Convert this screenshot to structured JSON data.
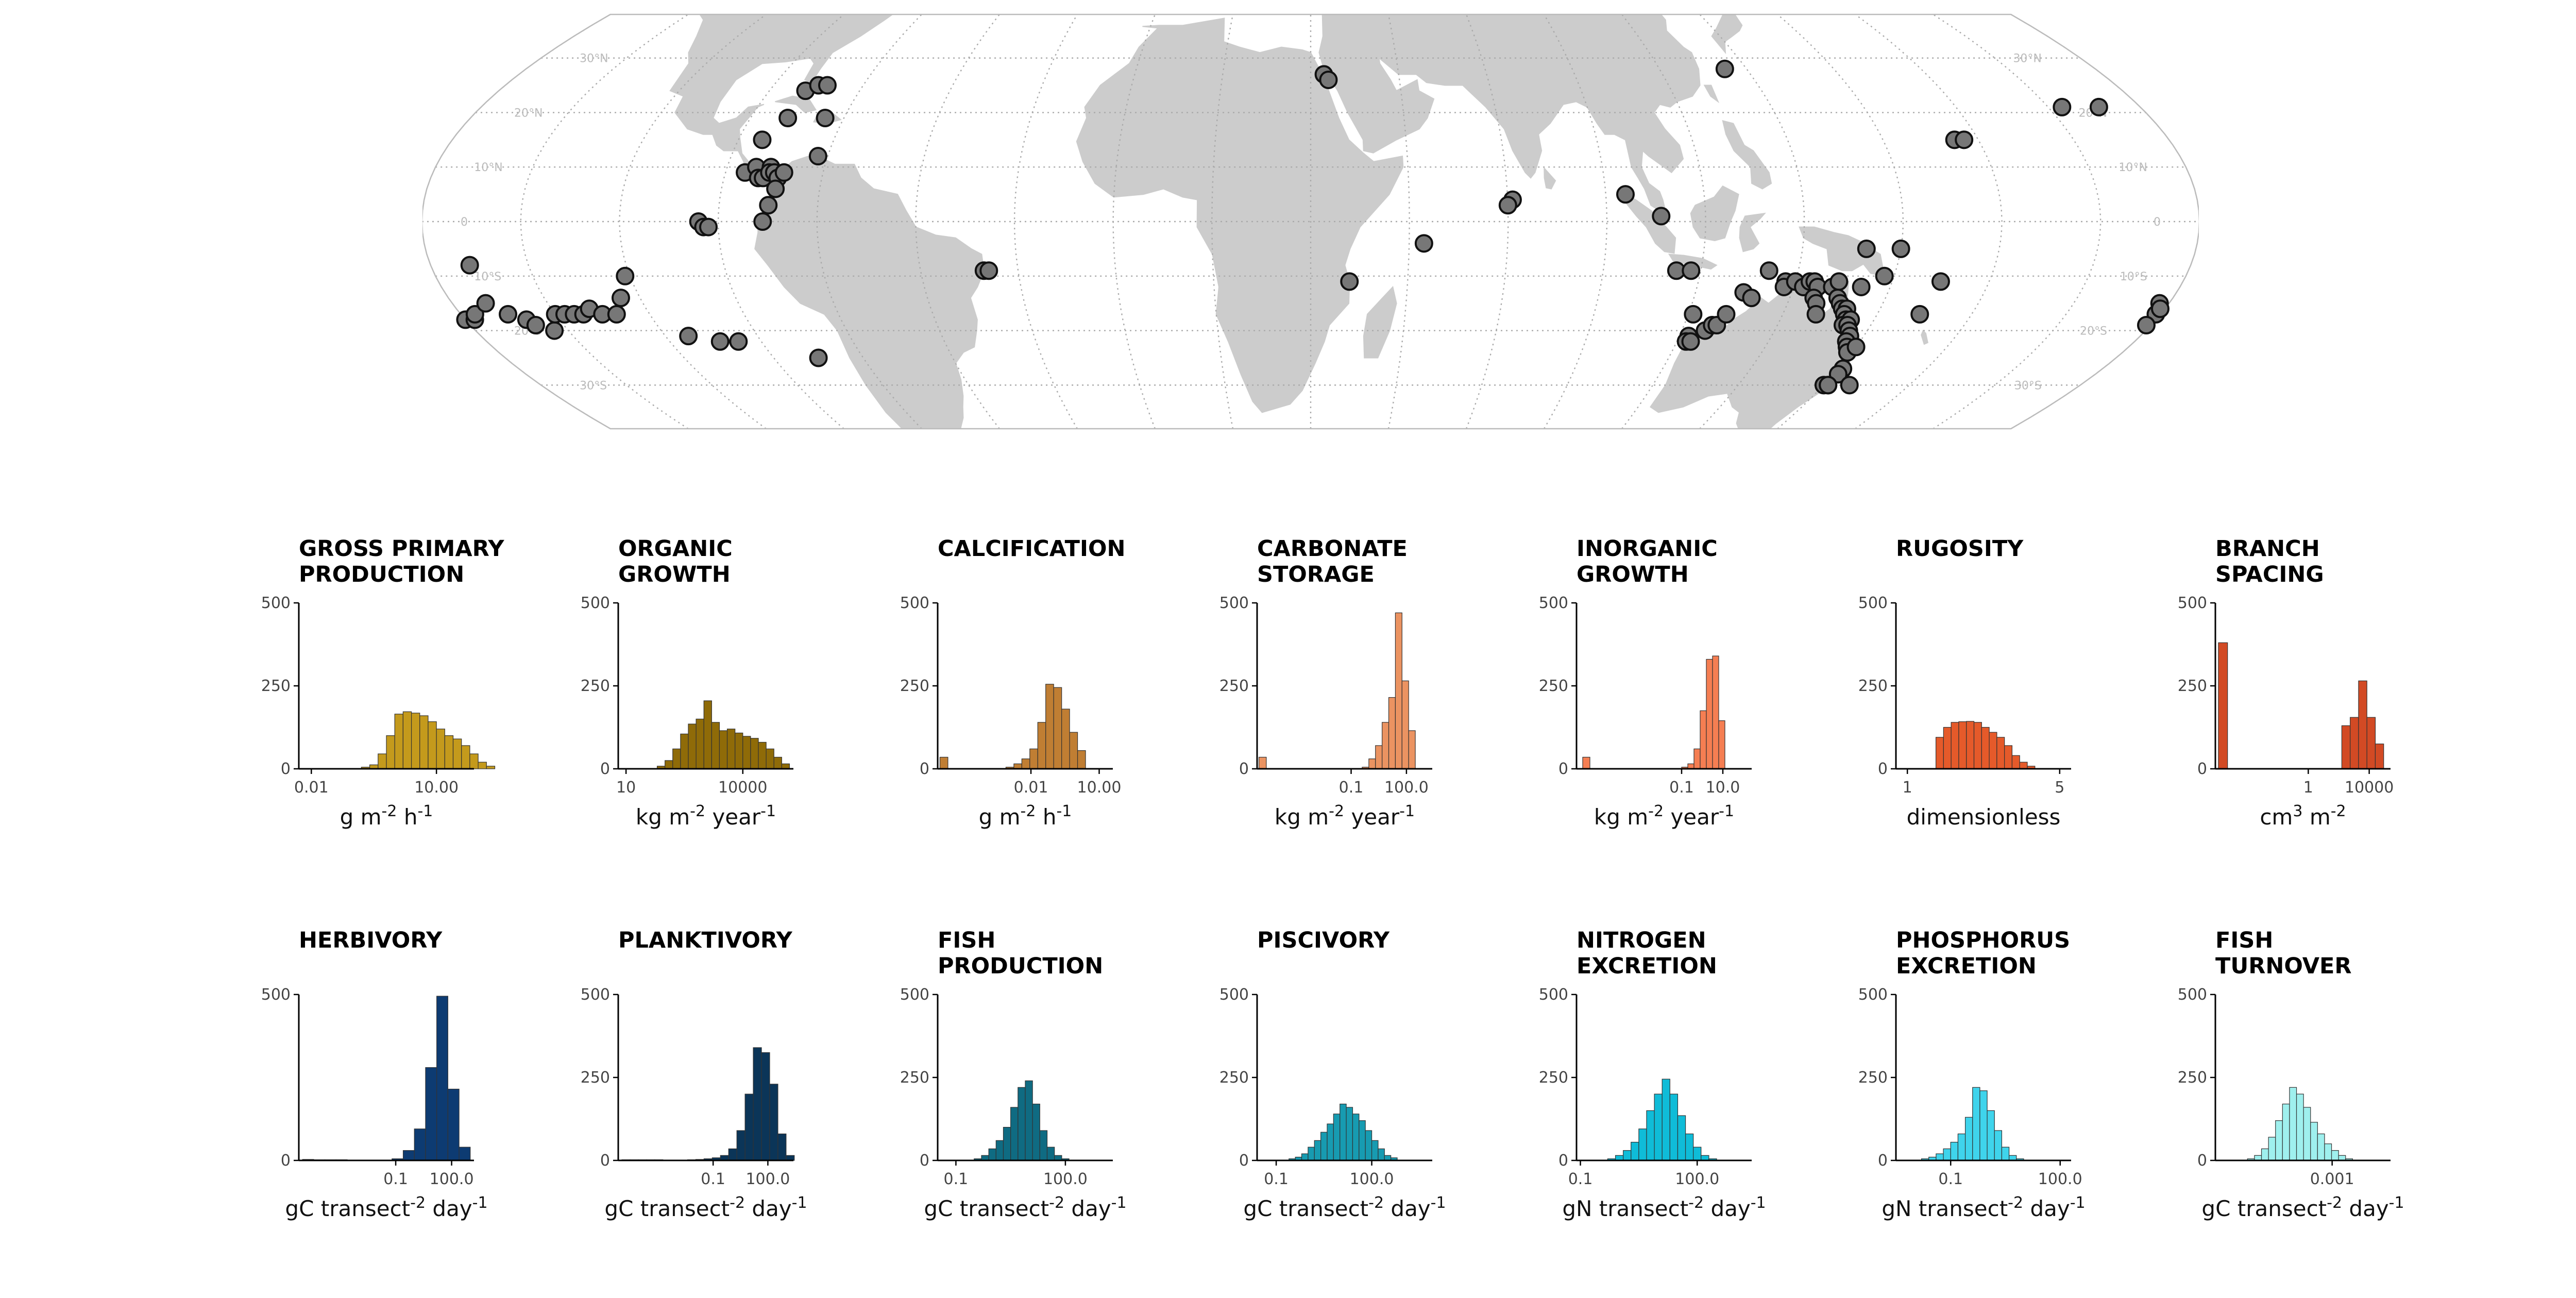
{
  "map": {
    "lat_labels": [
      "30°N",
      "20°N",
      "10°N",
      "0",
      "10°S",
      "20°S",
      "30°S"
    ],
    "land_color": "#cccccc",
    "grid_color": "#aaaaaa",
    "site_fill": "#777777",
    "site_stroke": "#111111",
    "sites": [
      [
        -165,
        21
      ],
      [
        -157,
        21
      ],
      [
        -150,
        -15
      ],
      [
        -149,
        -17
      ],
      [
        -149,
        -16
      ],
      [
        -149,
        -19
      ],
      [
        -148,
        -18
      ],
      [
        -146,
        -18
      ],
      [
        -145,
        -17
      ],
      [
        -141,
        -15
      ],
      [
        -140,
        -8
      ],
      [
        -138,
        -17
      ],
      [
        -135,
        -18
      ],
      [
        -134,
        -19
      ],
      [
        -131,
        -20
      ],
      [
        -128,
        -17
      ],
      [
        -126,
        -17
      ],
      [
        -124,
        -17
      ],
      [
        -122,
        -17
      ],
      [
        -120,
        -16
      ],
      [
        -118,
        -17
      ],
      [
        -115,
        -17
      ],
      [
        -112,
        -14
      ],
      [
        -109,
        -10
      ],
      [
        -103,
        -21
      ],
      [
        -97,
        -22
      ],
      [
        -93,
        -22
      ],
      [
        -78,
        -25
      ],
      [
        -92,
        0
      ],
      [
        -91,
        -1
      ],
      [
        -90,
        -1
      ],
      [
        -84,
        9
      ],
      [
        -83,
        15
      ],
      [
        -82,
        10
      ],
      [
        -81,
        8
      ],
      [
        -80,
        8
      ],
      [
        -79,
        10
      ],
      [
        -79,
        9
      ],
      [
        -78,
        9
      ],
      [
        -77,
        8
      ],
      [
        -77,
        6
      ],
      [
        -76,
        9
      ],
      [
        -78,
        3
      ],
      [
        -79,
        0
      ],
      [
        -80,
        19
      ],
      [
        -80,
        24
      ],
      [
        -78,
        25
      ],
      [
        -76,
        25
      ],
      [
        -72,
        19
      ],
      [
        -70,
        12
      ],
      [
        -35,
        -9
      ],
      [
        -34,
        -9
      ],
      [
        35,
        27
      ],
      [
        36,
        26
      ],
      [
        40,
        -11
      ],
      [
        55,
        -4
      ],
      [
        73,
        4
      ],
      [
        72,
        3
      ],
      [
        96,
        5
      ],
      [
        103,
        1
      ],
      [
        107,
        -9
      ],
      [
        110,
        -9
      ],
      [
        113,
        -17
      ],
      [
        114,
        -21
      ],
      [
        114,
        -22
      ],
      [
        115,
        -22
      ],
      [
        117,
        -20
      ],
      [
        118,
        -19
      ],
      [
        119,
        -19
      ],
      [
        120,
        -17
      ],
      [
        122,
        -13
      ],
      [
        124,
        -14
      ],
      [
        126,
        -9
      ],
      [
        127,
        28
      ],
      [
        130,
        -11
      ],
      [
        130,
        -12
      ],
      [
        132,
        -11
      ],
      [
        134,
        -12
      ],
      [
        135,
        -11
      ],
      [
        136,
        -11
      ],
      [
        137,
        -12
      ],
      [
        137,
        -14
      ],
      [
        138,
        -15
      ],
      [
        139,
        -17
      ],
      [
        140,
        -12
      ],
      [
        141,
        -11
      ],
      [
        142,
        -14
      ],
      [
        143,
        -15
      ],
      [
        144,
        -16
      ],
      [
        145,
        -16
      ],
      [
        145,
        -17
      ],
      [
        146,
        -18
      ],
      [
        146,
        -19
      ],
      [
        147,
        -18
      ],
      [
        147,
        -19
      ],
      [
        148,
        -20
      ],
      [
        149,
        -21
      ],
      [
        149,
        -22
      ],
      [
        150,
        -23
      ],
      [
        151,
        -24
      ],
      [
        152,
        -23
      ],
      [
        153,
        -27
      ],
      [
        153,
        -28
      ],
      [
        152,
        -30
      ],
      [
        153,
        -30
      ],
      [
        158,
        -30
      ],
      [
        145,
        -5
      ],
      [
        152,
        -5
      ],
      [
        146,
        -12
      ],
      [
        162,
        -11
      ],
      [
        161,
        -17
      ],
      [
        167,
        15
      ],
      [
        169,
        15
      ],
      [
        153,
        -30
      ],
      [
        150,
        -10
      ]
    ]
  },
  "chart_data": [
    {
      "type": "bar",
      "title": "GROSS PRIMARY\nPRODUCTION",
      "color": "#c49a1c",
      "ylim": [
        0,
        500
      ],
      "yticks": [
        "0",
        "250",
        "500"
      ],
      "xlim": [
        -2.3,
        1.9
      ],
      "xticks": [
        {
          "v": -2,
          "label": "0.01"
        },
        {
          "v": 1,
          "label": "10.00"
        }
      ],
      "unit": "g m-2 h-1",
      "bin_start": -0.8,
      "bin_width": 0.2,
      "values": [
        5,
        12,
        45,
        100,
        165,
        172,
        168,
        160,
        142,
        120,
        100,
        90,
        70,
        45,
        20,
        8
      ]
    },
    {
      "type": "bar",
      "title": "ORGANIC\nGROWTH",
      "color": "#8f6b08",
      "ylim": [
        0,
        500
      ],
      "yticks": [
        "0",
        "250",
        "500"
      ],
      "xlim": [
        0.8,
        5.3
      ],
      "xticks": [
        {
          "v": 1,
          "label": "10"
        },
        {
          "v": 4,
          "label": "10000"
        }
      ],
      "unit": "kg m-2 year-1",
      "bin_start": 1.8,
      "bin_width": 0.2,
      "values": [
        8,
        25,
        60,
        105,
        135,
        150,
        205,
        140,
        115,
        120,
        108,
        98,
        92,
        80,
        60,
        35,
        15
      ]
    },
    {
      "type": "bar",
      "title": "CALCIFICATION",
      "color": "#c07e33",
      "ylim": [
        0,
        500
      ],
      "yticks": [
        "0",
        "250",
        "500"
      ],
      "xlim": [
        -6.1,
        1.6
      ],
      "xticks": [
        {
          "v": -2,
          "label": "0.01"
        },
        {
          "v": 1,
          "label": "10.00"
        }
      ],
      "unit": "g m-2 h-1",
      "bin_start": -3.1,
      "bin_width": 0.35,
      "outlier": {
        "x": -6.0,
        "w": 0.35,
        "v": 35
      },
      "values": [
        5,
        15,
        30,
        60,
        140,
        255,
        245,
        180,
        110,
        55
      ]
    },
    {
      "type": "bar",
      "title": "CARBONATE\nSTORAGE",
      "color": "#eb9361",
      "ylim": [
        0,
        500
      ],
      "yticks": [
        "0",
        "250",
        "500"
      ],
      "xlim": [
        -6.1,
        3.4
      ],
      "xticks": [
        {
          "v": -1,
          "label": "0.1"
        },
        {
          "v": 2,
          "label": "100.0"
        }
      ],
      "unit": "kg m-2 year-1",
      "bin_start": -0.4,
      "bin_width": 0.36,
      "outlier": {
        "x": -6.0,
        "w": 0.4,
        "v": 35
      },
      "values": [
        5,
        30,
        70,
        140,
        215,
        470,
        265,
        115
      ]
    },
    {
      "type": "bar",
      "title": "INORGANIC\nGROWTH",
      "color": "#f57e52",
      "ylim": [
        0,
        500
      ],
      "yticks": [
        "0",
        "250",
        "500"
      ],
      "xlim": [
        -6.1,
        2.4
      ],
      "xticks": [
        {
          "v": -1,
          "label": "0.1"
        },
        {
          "v": 1,
          "label": "10.0"
        }
      ],
      "unit": "kg m-2 year-1",
      "bin_start": -1.0,
      "bin_width": 0.3,
      "outlier": {
        "x": -5.8,
        "w": 0.35,
        "v": 35
      },
      "values": [
        5,
        15,
        60,
        175,
        330,
        340,
        145
      ]
    },
    {
      "type": "bar",
      "title": "RUGOSITY",
      "color": "#e55a2a",
      "ylim": [
        0,
        500
      ],
      "yticks": [
        "0",
        "250",
        "500"
      ],
      "xlim": [
        0.7,
        5.3
      ],
      "xticks": [
        {
          "v": 1,
          "label": "1"
        },
        {
          "v": 5,
          "label": "5"
        }
      ],
      "unit": "dimensionless",
      "bin_start": 1.75,
      "bin_width": 0.2,
      "values": [
        95,
        125,
        140,
        142,
        143,
        140,
        125,
        110,
        95,
        70,
        40,
        20,
        8
      ]
    },
    {
      "type": "bar",
      "title": "BRANCH\nSPACING",
      "color": "#d24a24",
      "ylim": [
        0,
        500
      ],
      "yticks": [
        "0",
        "250",
        "500"
      ],
      "xlim": [
        -6.1,
        5.4
      ],
      "xticks": [
        {
          "v": 0,
          "label": "1"
        },
        {
          "v": 4,
          "label": "10000"
        }
      ],
      "unit": "cm3 m-2",
      "bin_start": 2.2,
      "bin_width": 0.55,
      "outlier": {
        "x": -5.9,
        "w": 0.6,
        "v": 380
      },
      "values": [
        130,
        155,
        265,
        155,
        75
      ]
    },
    {
      "type": "bar",
      "title": "HERBIVORY",
      "color": "#0d3b72",
      "ylim": [
        0,
        500
      ],
      "yticks": [
        "0",
        "500"
      ],
      "xlim": [
        -6.2,
        3.2
      ],
      "xticks": [
        {
          "v": -1,
          "label": "0.1"
        },
        {
          "v": 2,
          "label": "100.0"
        }
      ],
      "unit": "gC transect-2 day-1",
      "bin_start": -6.0,
      "bin_width": 0.6,
      "values": [
        3,
        2,
        2,
        2,
        1,
        1,
        1,
        1,
        5,
        30,
        95,
        280,
        495,
        215,
        40
      ]
    },
    {
      "type": "bar",
      "title": "PLANKTIVORY",
      "color": "#0b3558",
      "ylim": [
        0,
        500
      ],
      "yticks": [
        "0",
        "250",
        "500"
      ],
      "xlim": [
        -6.2,
        3.4
      ],
      "xticks": [
        {
          "v": -1,
          "label": "0.1"
        },
        {
          "v": 2,
          "label": "100.0"
        }
      ],
      "unit": "gC transect-2 day-1",
      "bin_start": -6.0,
      "bin_width": 0.45,
      "values": [
        2,
        2,
        2,
        2,
        2,
        1,
        1,
        1,
        2,
        3,
        5,
        8,
        15,
        35,
        90,
        200,
        340,
        325,
        230,
        80,
        15
      ]
    },
    {
      "type": "bar",
      "title": "FISH\nPRODUCTION",
      "color": "#0f6b82",
      "ylim": [
        0,
        500
      ],
      "yticks": [
        "0",
        "250",
        "500"
      ],
      "xlim": [
        -1.5,
        3.3
      ],
      "xticks": [
        {
          "v": -1,
          "label": "0.1"
        },
        {
          "v": 2,
          "label": "100.0"
        }
      ],
      "unit": "gC transect-2 day-1",
      "bin_start": -0.5,
      "bin_width": 0.2,
      "values": [
        5,
        15,
        35,
        60,
        100,
        160,
        220,
        240,
        170,
        90,
        40,
        15,
        5
      ]
    },
    {
      "type": "bar",
      "title": "PISCIVORY",
      "color": "#179bb1",
      "ylim": [
        0,
        500
      ],
      "yticks": [
        "0",
        "250",
        "500"
      ],
      "xlim": [
        -1.6,
        3.9
      ],
      "xticks": [
        {
          "v": -1,
          "label": "0.1"
        },
        {
          "v": 2,
          "label": "100.0"
        }
      ],
      "unit": "gC transect-2 day-1",
      "bin_start": -0.6,
      "bin_width": 0.2,
      "values": [
        5,
        10,
        20,
        40,
        60,
        85,
        110,
        140,
        170,
        160,
        140,
        120,
        90,
        60,
        35,
        15,
        8
      ]
    },
    {
      "type": "bar",
      "title": "NITROGEN\nEXCRETION",
      "color": "#0fbcd8",
      "ylim": [
        0,
        500
      ],
      "yticks": [
        "0",
        "250",
        "500"
      ],
      "xlim": [
        -1.1,
        3.4
      ],
      "xticks": [
        {
          "v": -1,
          "label": "0.1"
        },
        {
          "v": 2,
          "label": "100.0"
        }
      ],
      "unit": "gN transect-2 day-1",
      "bin_start": -0.3,
      "bin_width": 0.2,
      "values": [
        5,
        15,
        30,
        55,
        95,
        150,
        200,
        245,
        200,
        135,
        80,
        40,
        15,
        5
      ]
    },
    {
      "type": "bar",
      "title": "PHOSPHORUS\nEXCRETION",
      "color": "#3fd4ec",
      "ylim": [
        0,
        500
      ],
      "yticks": [
        "0",
        "250",
        "500"
      ],
      "xlim": [
        -2.5,
        2.3
      ],
      "xticks": [
        {
          "v": -1,
          "label": "0.1"
        },
        {
          "v": 2,
          "label": "100.0"
        }
      ],
      "unit": "gN transect-2 day-1",
      "bin_start": -1.8,
      "bin_width": 0.2,
      "values": [
        5,
        10,
        20,
        35,
        55,
        80,
        130,
        220,
        210,
        150,
        90,
        40,
        15,
        5
      ]
    },
    {
      "type": "bar",
      "title": "FISH\nTURNOVER",
      "color": "#9ff0ee",
      "ylim": [
        0,
        500
      ],
      "yticks": [
        "0",
        "250",
        "500"
      ],
      "xlim": [
        -5.0,
        -2.0
      ],
      "xticks": [
        {
          "v": -3,
          "label": "0.001"
        }
      ],
      "unit": "gC transect-2 day-1",
      "bin_start": -4.45,
      "bin_width": 0.12,
      "values": [
        5,
        15,
        35,
        70,
        120,
        170,
        220,
        200,
        160,
        115,
        80,
        50,
        30,
        15,
        5
      ]
    }
  ]
}
